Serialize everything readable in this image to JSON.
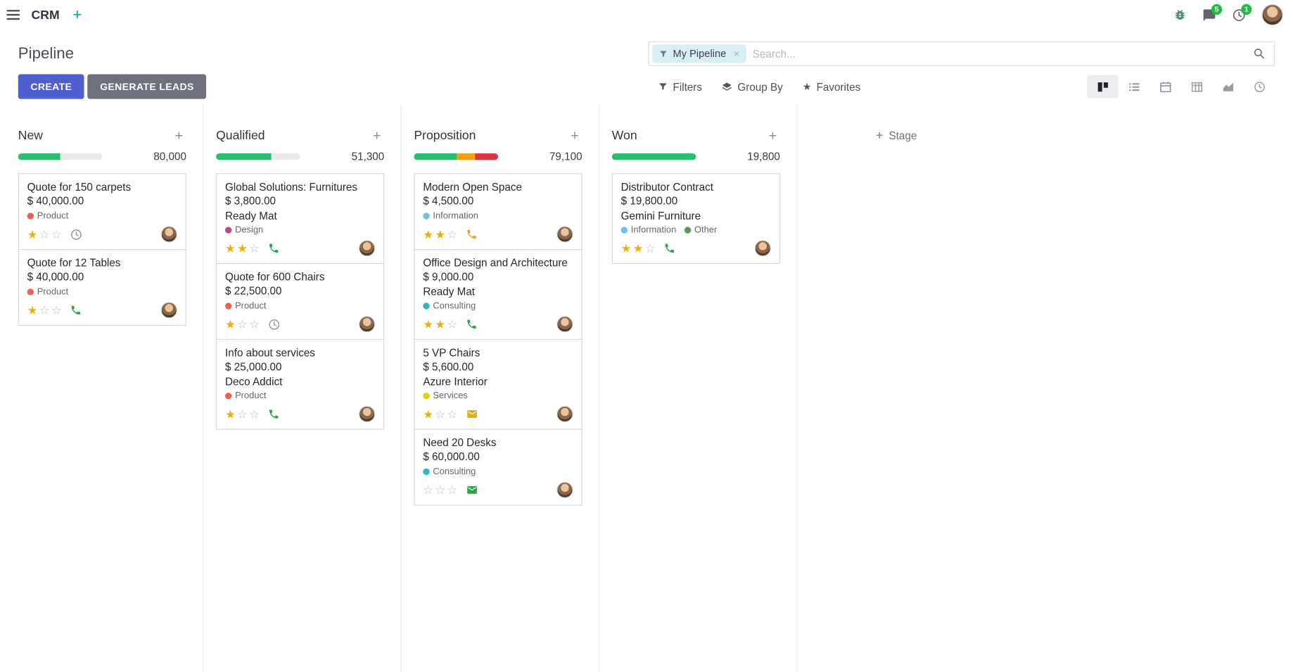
{
  "colors": {
    "primary": "#4f5fd0",
    "secondary_button": "#6e707e",
    "badge_green": "#21ba45",
    "star_gold": "#f0ad00",
    "facet_bg": "#daeef7",
    "progress_green": "#2abd6e",
    "progress_orange": "#f0a11c",
    "progress_red": "#dc3545"
  },
  "icons": {
    "plus": "+",
    "close": "×",
    "star_filled": "★",
    "star_empty": "☆",
    "navbar_icons": [
      "apps-menu",
      "bug",
      "messages",
      "activities",
      "user-avatar"
    ],
    "view_switcher_icons": [
      "kanban",
      "list",
      "calendar",
      "pivot",
      "graph",
      "activity"
    ]
  },
  "navbar": {
    "app_name": "CRM",
    "badges": {
      "messages": "5",
      "activities": "1"
    }
  },
  "control_panel": {
    "title": "Pipeline",
    "search": {
      "facet_label": "My Pipeline",
      "placeholder": "Search..."
    },
    "primary_button": "CREATE",
    "secondary_button": "GENERATE LEADS",
    "filter_buttons": {
      "filters": "Filters",
      "group_by": "Group By",
      "favorites": "Favorites"
    }
  },
  "board": {
    "add_stage": {
      "label": "Stage"
    },
    "columns": [
      {
        "name": "New",
        "total": "80,000",
        "progress": [
          {
            "color": "#2abd6e",
            "pct": 50
          }
        ],
        "cards": [
          {
            "title": "Quote for 150 carpets",
            "amount": "$ 40,000.00",
            "partner": "",
            "tags": [
              {
                "name": "Product",
                "color": "#f06050"
              }
            ],
            "stars": 1,
            "activity": {
              "type": "clock",
              "color": "#95959f"
            }
          },
          {
            "title": "Quote for 12 Tables",
            "amount": "$ 40,000.00",
            "partner": "",
            "tags": [
              {
                "name": "Product",
                "color": "#f06050"
              }
            ],
            "stars": 1,
            "activity": {
              "type": "phone",
              "color": "#28a745"
            }
          }
        ]
      },
      {
        "name": "Qualified",
        "total": "51,300",
        "progress": [
          {
            "color": "#2abd6e",
            "pct": 66
          }
        ],
        "cards": [
          {
            "title": "Global Solutions: Furnitures",
            "amount": "$ 3,800.00",
            "partner": "Ready Mat",
            "tags": [
              {
                "name": "Design",
                "color": "#ad4e84"
              }
            ],
            "stars": 2,
            "activity": {
              "type": "phone",
              "color": "#28a745"
            }
          },
          {
            "title": "Quote for 600 Chairs",
            "amount": "$ 22,500.00",
            "partner": "",
            "tags": [
              {
                "name": "Product",
                "color": "#f06050"
              }
            ],
            "stars": 1,
            "activity": {
              "type": "clock",
              "color": "#95959f"
            }
          },
          {
            "title": "Info about services",
            "amount": "$ 25,000.00",
            "partner": "Deco Addict",
            "tags": [
              {
                "name": "Product",
                "color": "#f06050"
              }
            ],
            "stars": 1,
            "activity": {
              "type": "phone",
              "color": "#28a745"
            }
          }
        ]
      },
      {
        "name": "Proposition",
        "total": "79,100",
        "progress": [
          {
            "color": "#2abd6e",
            "pct": 51
          },
          {
            "color": "#f0a11c",
            "pct": 22
          },
          {
            "color": "#dc3545",
            "pct": 27
          }
        ],
        "cards": [
          {
            "title": "Modern Open Space",
            "amount": "$ 4,500.00",
            "partner": "",
            "tags": [
              {
                "name": "Information",
                "color": "#6cc1ed"
              }
            ],
            "stars": 2,
            "activity": {
              "type": "phone",
              "color": "#f0a11c"
            }
          },
          {
            "title": "Office Design and Architecture",
            "amount": "$ 9,000.00",
            "partner": "Ready Mat",
            "tags": [
              {
                "name": "Consulting",
                "color": "#35b5c4"
              }
            ],
            "stars": 2,
            "activity": {
              "type": "phone",
              "color": "#28a745"
            }
          },
          {
            "title": "5 VP Chairs",
            "amount": "$ 5,600.00",
            "partner": "Azure Interior",
            "tags": [
              {
                "name": "Services",
                "color": "#ecc714"
              }
            ],
            "stars": 1,
            "activity": {
              "type": "envelope",
              "color": "#e8a91d"
            }
          },
          {
            "title": "Need 20 Desks",
            "amount": "$ 60,000.00",
            "partner": "",
            "tags": [
              {
                "name": "Consulting",
                "color": "#35b5c4"
              }
            ],
            "stars": 0,
            "activity": {
              "type": "envelope",
              "color": "#28a745"
            }
          }
        ]
      },
      {
        "name": "Won",
        "total": "19,800",
        "progress": [
          {
            "color": "#2abd6e",
            "pct": 100
          }
        ],
        "cards": [
          {
            "title": "Distributor Contract",
            "amount": "$ 19,800.00",
            "partner": "Gemini Furniture",
            "tags": [
              {
                "name": "Information",
                "color": "#6cc1ed"
              },
              {
                "name": "Other",
                "color": "#579b58"
              }
            ],
            "stars": 2,
            "activity": {
              "type": "phone",
              "color": "#28a745"
            }
          }
        ]
      }
    ]
  }
}
